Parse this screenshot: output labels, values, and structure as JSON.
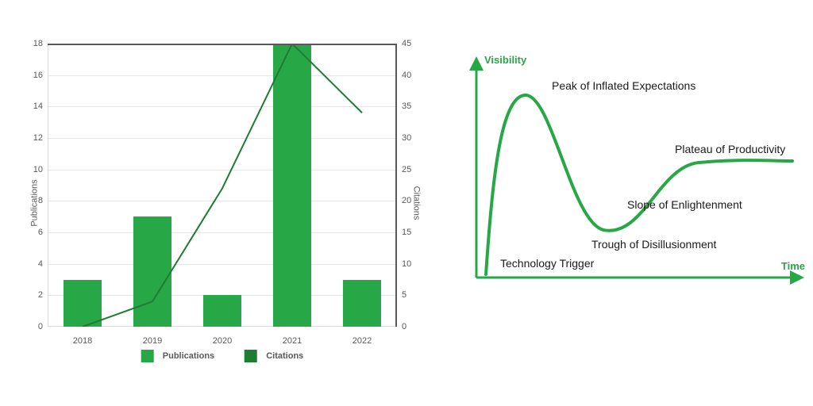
{
  "left_chart": {
    "type": "bar+line",
    "categories": [
      "2018",
      "2019",
      "2020",
      "2021",
      "2022"
    ],
    "bars": {
      "label": "Publications",
      "axis_label": "Publications",
      "values": [
        3,
        7,
        2,
        18,
        3
      ],
      "ylim": [
        0,
        18
      ],
      "ytick_step": 2,
      "color": "#27a745",
      "bar_width_frac": 0.55
    },
    "line": {
      "label": "Citations",
      "axis_label": "Citations",
      "values": [
        0,
        4,
        22,
        45,
        34
      ],
      "ylim": [
        0,
        45
      ],
      "ytick_step": 5,
      "color": "#1e7c33",
      "width": 2
    },
    "grid_color": "#e6e6e6",
    "border_color": "#595959",
    "tick_font_size": 11,
    "label_font_size": 11,
    "legend_font_size": 11
  },
  "hype_cycle": {
    "type": "curve-diagram",
    "axis_color": "#27a745",
    "curve_color": "#27a745",
    "curve_width": 4,
    "y_axis_label": "Visibility",
    "x_axis_label": "Time",
    "axis_label_color": "#27a745",
    "label_color": "#1a1a1a",
    "label_font_size": 14,
    "labels": {
      "trigger": "Technology Trigger",
      "peak": "Peak of Inflated Expectations",
      "trough": "Trough of Disillusionment",
      "slope": "Slope of Enlightenment",
      "plateau": "Plateau of Productivity"
    }
  }
}
